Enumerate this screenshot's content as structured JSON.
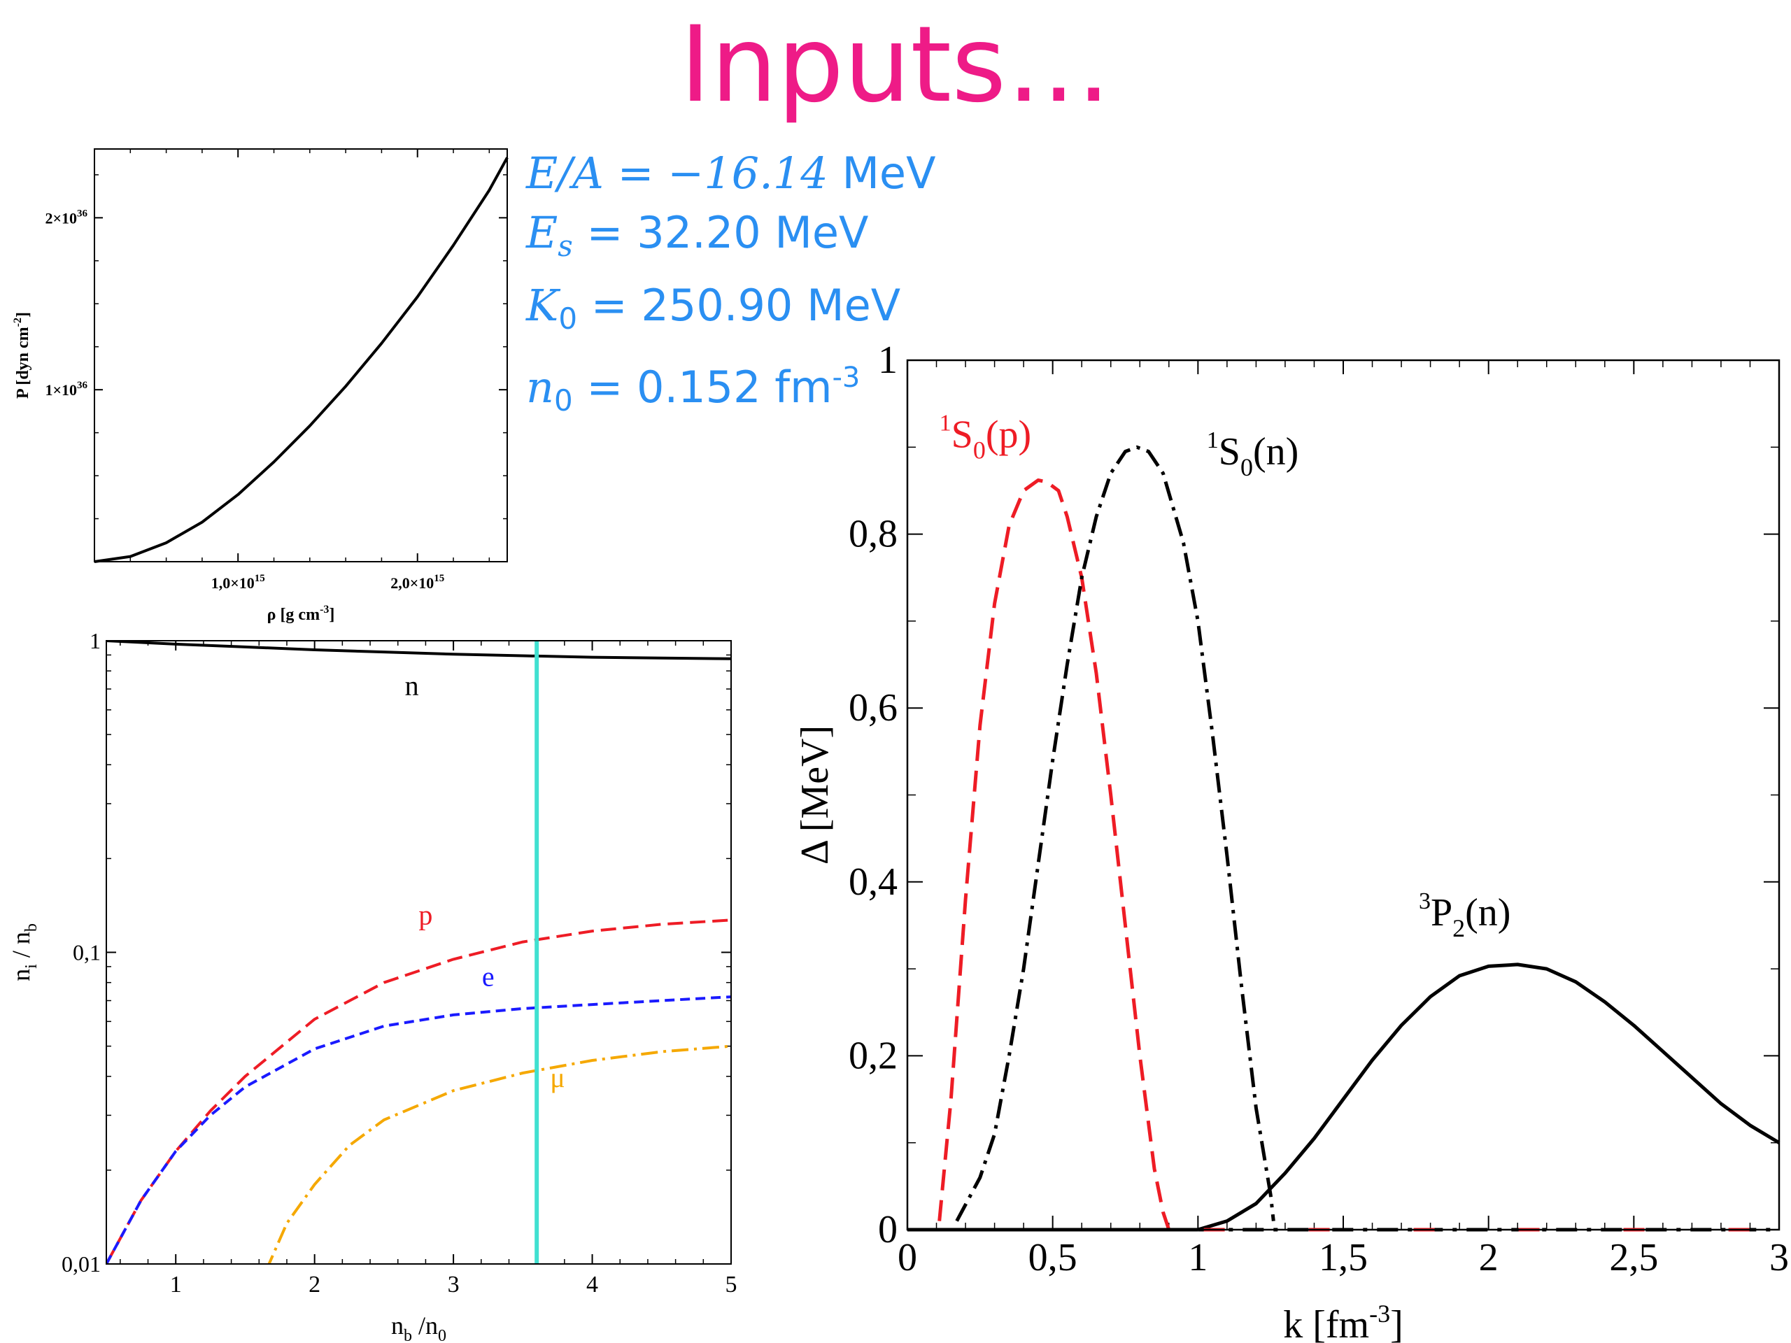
{
  "slide": {
    "title": "Inputs…",
    "params": [
      {
        "sym": "E/A = −16.14",
        "sub": "",
        "val": " MeV",
        "sup": ""
      },
      {
        "sym": "E",
        "sub": "s",
        "val": " = 32.20 MeV",
        "sup": ""
      },
      {
        "sym": "K",
        "sub": "0",
        "val": " = 250.90 MeV",
        "sup": ""
      },
      {
        "sym": "n",
        "sub": "0",
        "val": " = 0.152 fm",
        "sup": "-3"
      }
    ]
  },
  "chart_data": [
    {
      "type": "line",
      "xlabel": "ρ [g cm",
      "xlabel_sup": "-3",
      "xlabel_end": "]",
      "ylabel": "P [dyn cm",
      "ylabel_sup": "-2",
      "ylabel_end": "]",
      "xlim": [
        200000000000000.0,
        2500000000000000.0
      ],
      "ylim": [
        0,
        2.4e+36
      ],
      "xticks": [
        {
          "v": 1000000000000000.0,
          "m": "1,0×10",
          "e": "15"
        },
        {
          "v": 2000000000000000.0,
          "m": "2,0×10",
          "e": "15"
        }
      ],
      "yticks": [
        {
          "v": 1e+36,
          "m": "1×10",
          "e": "36"
        },
        {
          "v": 2e+36,
          "m": "2×10",
          "e": "36"
        }
      ],
      "series": [
        {
          "color": "#000000",
          "x": [
            200000000000000.0,
            400000000000000.0,
            600000000000000.0,
            800000000000000.0,
            1000000000000000.0,
            1200000000000000.0,
            1400000000000000.0,
            1600000000000000.0,
            1800000000000000.0,
            2000000000000000.0,
            2200000000000000.0,
            2400000000000000.0,
            2500000000000000.0
          ],
          "y": [
            0,
            3e+34,
            1.1e+35,
            2.3e+35,
            3.9e+35,
            5.8e+35,
            7.9e+35,
            1.02e+36,
            1.27e+36,
            1.54e+36,
            1.84e+36,
            2.16e+36,
            2.35e+36
          ]
        }
      ]
    },
    {
      "type": "line",
      "xlabel": "n",
      "xlabel_sub": "b",
      "xlabel_mid": " /n",
      "xlabel_sub2": "0",
      "ylabel": "n",
      "ylabel_sub": "i",
      "ylabel_mid": " / n",
      "ylabel_sub2": "b",
      "xlim": [
        0.5,
        5
      ],
      "ylim": [
        0.01,
        1
      ],
      "yscale": "log",
      "xticks": [
        "1",
        "2",
        "3",
        "4",
        "5"
      ],
      "yticks": [
        {
          "v": 0.01,
          "label": "0,01"
        },
        {
          "v": 0.1,
          "label": "0,1"
        },
        {
          "v": 1,
          "label": "1"
        }
      ],
      "vline": {
        "x": 3.6,
        "color": "#40e0d0"
      },
      "series": [
        {
          "name": "n",
          "color": "#000000",
          "dash": "none",
          "x": [
            0.5,
            1,
            1.5,
            2,
            2.5,
            3,
            3.5,
            4,
            4.5,
            5
          ],
          "y": [
            1.0,
            0.975,
            0.955,
            0.935,
            0.92,
            0.905,
            0.895,
            0.885,
            0.88,
            0.875
          ]
        },
        {
          "name": "p",
          "color": "#ee1c25",
          "dash": "22 10",
          "x": [
            0.5,
            0.75,
            1,
            1.25,
            1.5,
            2,
            2.5,
            3,
            3.5,
            4,
            4.5,
            5
          ],
          "y": [
            0.01,
            0.016,
            0.023,
            0.031,
            0.04,
            0.061,
            0.08,
            0.095,
            0.108,
            0.117,
            0.123,
            0.127
          ]
        },
        {
          "name": "e",
          "color": "#1a1aff",
          "dash": "14 8",
          "x": [
            0.5,
            0.75,
            1,
            1.25,
            1.5,
            2,
            2.5,
            3,
            3.5,
            4,
            4.5,
            5
          ],
          "y": [
            0.01,
            0.016,
            0.023,
            0.03,
            0.037,
            0.049,
            0.058,
            0.063,
            0.066,
            0.068,
            0.07,
            0.072
          ]
        },
        {
          "name": "μ",
          "color": "#f5a800",
          "dash": "24 8 4 8",
          "x": [
            1.65,
            1.8,
            2,
            2.25,
            2.5,
            3,
            3.5,
            4,
            4.5,
            5
          ],
          "y": [
            0.0095,
            0.0135,
            0.018,
            0.024,
            0.029,
            0.036,
            0.041,
            0.045,
            0.048,
            0.05
          ]
        }
      ],
      "labels": [
        {
          "text": "n",
          "x": 2.7,
          "y": 0.67,
          "color": "#000000"
        },
        {
          "text": "p",
          "x": 2.8,
          "y": 0.123,
          "color": "#ee1c25"
        },
        {
          "text": "e",
          "x": 3.25,
          "y": 0.078,
          "color": "#1a1aff"
        },
        {
          "text": "μ",
          "x": 3.75,
          "y": 0.037,
          "color": "#f5a800"
        }
      ]
    },
    {
      "type": "line",
      "xlabel": "k [fm",
      "xlabel_sup": "-3",
      "xlabel_end": "]",
      "ylabel": "Δ [MeV]",
      "xlim": [
        0,
        3
      ],
      "ylim": [
        0,
        1
      ],
      "xticks": [
        {
          "v": 0,
          "label": "0"
        },
        {
          "v": 0.5,
          "label": "0,5"
        },
        {
          "v": 1,
          "label": "1"
        },
        {
          "v": 1.5,
          "label": "1,5"
        },
        {
          "v": 2,
          "label": "2"
        },
        {
          "v": 2.5,
          "label": "2,5"
        },
        {
          "v": 3,
          "label": "3"
        }
      ],
      "yticks": [
        {
          "v": 0,
          "label": "0"
        },
        {
          "v": 0.2,
          "label": "0,2"
        },
        {
          "v": 0.4,
          "label": "0,4"
        },
        {
          "v": 0.6,
          "label": "0,6"
        },
        {
          "v": 0.8,
          "label": "0,8"
        },
        {
          "v": 1,
          "label": "1"
        }
      ],
      "series": [
        {
          "name": "1S0(p)",
          "color": "#ee1c25",
          "dash": "30 14",
          "x": [
            0.11,
            0.15,
            0.2,
            0.25,
            0.3,
            0.35,
            0.4,
            0.45,
            0.48,
            0.52,
            0.55,
            0.6,
            0.65,
            0.7,
            0.75,
            0.8,
            0.85,
            0.88,
            0.9
          ],
          "y": [
            0.01,
            0.15,
            0.38,
            0.58,
            0.72,
            0.81,
            0.85,
            0.862,
            0.86,
            0.85,
            0.82,
            0.75,
            0.64,
            0.5,
            0.35,
            0.2,
            0.07,
            0.02,
            0.0
          ]
        },
        {
          "name": "1S0(n)",
          "color": "#000000",
          "dash": "28 10 5 10",
          "x": [
            0.17,
            0.25,
            0.3,
            0.35,
            0.4,
            0.45,
            0.5,
            0.55,
            0.6,
            0.65,
            0.7,
            0.75,
            0.79,
            0.83,
            0.88,
            0.95,
            1.0,
            1.05,
            1.1,
            1.15,
            1.2,
            1.25,
            1.26
          ],
          "y": [
            0.01,
            0.06,
            0.11,
            0.2,
            0.3,
            0.42,
            0.54,
            0.65,
            0.75,
            0.82,
            0.87,
            0.895,
            0.9,
            0.895,
            0.87,
            0.79,
            0.7,
            0.57,
            0.43,
            0.28,
            0.14,
            0.04,
            0.01
          ]
        },
        {
          "name": "3P2(n)",
          "color": "#000000",
          "dash": "none",
          "x": [
            1.0,
            1.1,
            1.2,
            1.3,
            1.4,
            1.5,
            1.6,
            1.7,
            1.8,
            1.9,
            2.0,
            2.1,
            2.2,
            2.3,
            2.4,
            2.5,
            2.6,
            2.7,
            2.8,
            2.9,
            3.0
          ],
          "y": [
            0.0,
            0.01,
            0.03,
            0.065,
            0.105,
            0.15,
            0.195,
            0.235,
            0.268,
            0.292,
            0.303,
            0.305,
            0.3,
            0.285,
            0.262,
            0.235,
            0.205,
            0.175,
            0.145,
            0.12,
            0.1
          ]
        },
        {
          "name": "",
          "color": "#000000",
          "dash": "none",
          "x": [
            0,
            1.0
          ],
          "y": [
            0,
            0
          ]
        },
        {
          "name": "",
          "color": "#000000",
          "dash": "30 14 6 14",
          "x": [
            1.0,
            3.0
          ],
          "y": [
            0,
            0
          ]
        },
        {
          "name": "",
          "color": "#ee1c25",
          "dash": "30 120",
          "x": [
            1.02,
            3.0
          ],
          "y": [
            0,
            0
          ]
        }
      ],
      "labels": [
        {
          "pre": "1",
          "main": "S",
          "sub": "0",
          "post": "(p)",
          "x": 0.11,
          "y": 0.9,
          "color": "#ee1c25"
        },
        {
          "pre": "1",
          "main": "S",
          "sub": "0",
          "post": "(n)",
          "x": 1.03,
          "y": 0.88,
          "color": "#000000"
        },
        {
          "pre": "3",
          "main": "P",
          "sub": "2",
          "post": "(n)",
          "x": 1.76,
          "y": 0.35,
          "color": "#000000"
        }
      ]
    }
  ]
}
